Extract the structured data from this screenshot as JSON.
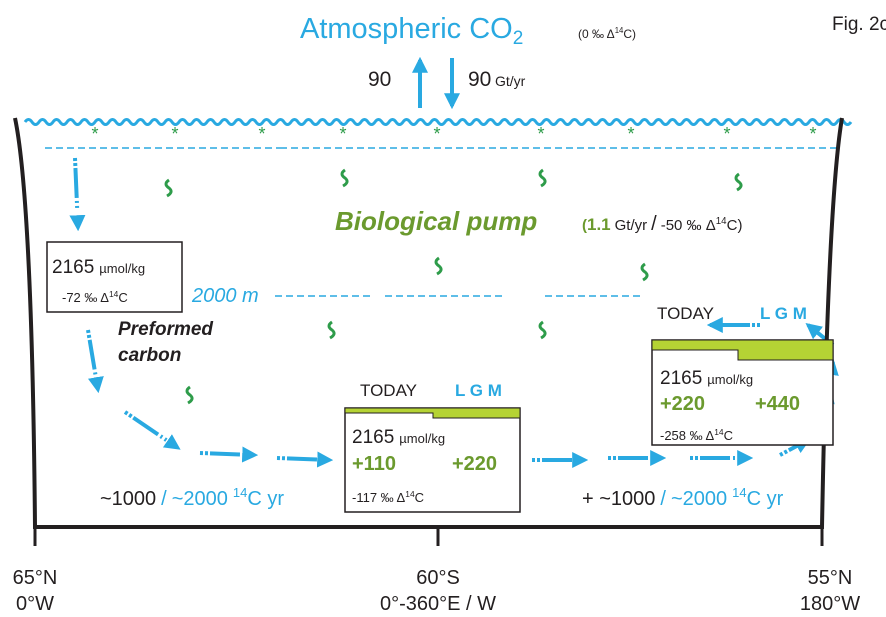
{
  "figure_label": "Fig. 2c",
  "atmosphere": {
    "title": "Atmospheric CO",
    "title_sub": "2",
    "note_pre": "(0 ‰ Δ",
    "note_sup": "14",
    "note_post": "C)",
    "flux_up": "90",
    "flux_down": "90",
    "flux_unit": "Gt/yr"
  },
  "bio_pump": {
    "label": "Biological pump",
    "open": "(",
    "amount": "1.1",
    "unit": "Gt/yr",
    "slash": "/",
    "iso_pre": "-50 ‰ Δ",
    "iso_sup": "14",
    "iso_post": "C)"
  },
  "depth_label": "2000 m",
  "preformed": {
    "line1": "Preformed",
    "line2": "carbon"
  },
  "box_north": {
    "conc": "2165",
    "unit": "µmol/kg",
    "iso_pre": "-72 ‰ Δ",
    "iso_sup": "14",
    "iso_post": "C"
  },
  "box_south": {
    "today": "TODAY",
    "lgm": "L G M",
    "conc": "2165",
    "unit": "µmol/kg",
    "today_add": "+110",
    "lgm_add": "+220",
    "iso_pre": "-117 ‰ Δ",
    "iso_sup": "14",
    "iso_post": "C"
  },
  "box_pacific": {
    "today": "TODAY",
    "lgm": "L G M",
    "conc": "2165",
    "unit": "µmol/kg",
    "today_add": "+220",
    "lgm_add": "+440",
    "iso_pre": "-258 ‰ Δ",
    "iso_sup": "14",
    "iso_post": "C"
  },
  "age_left": {
    "today": "~1000",
    "slash": "/",
    "lgm": "~2000",
    "sup": "14",
    "post": "C yr"
  },
  "age_right": {
    "today": "+ ~1000",
    "slash": "/",
    "lgm": "~2000",
    "sup": "14",
    "post": "C yr"
  },
  "axis": [
    {
      "lat": "65°N",
      "lon": "0°W"
    },
    {
      "lat": "60°S",
      "lon": "0°-360°E / W"
    },
    {
      "lat": "55°N",
      "lon": "180°W"
    }
  ]
}
